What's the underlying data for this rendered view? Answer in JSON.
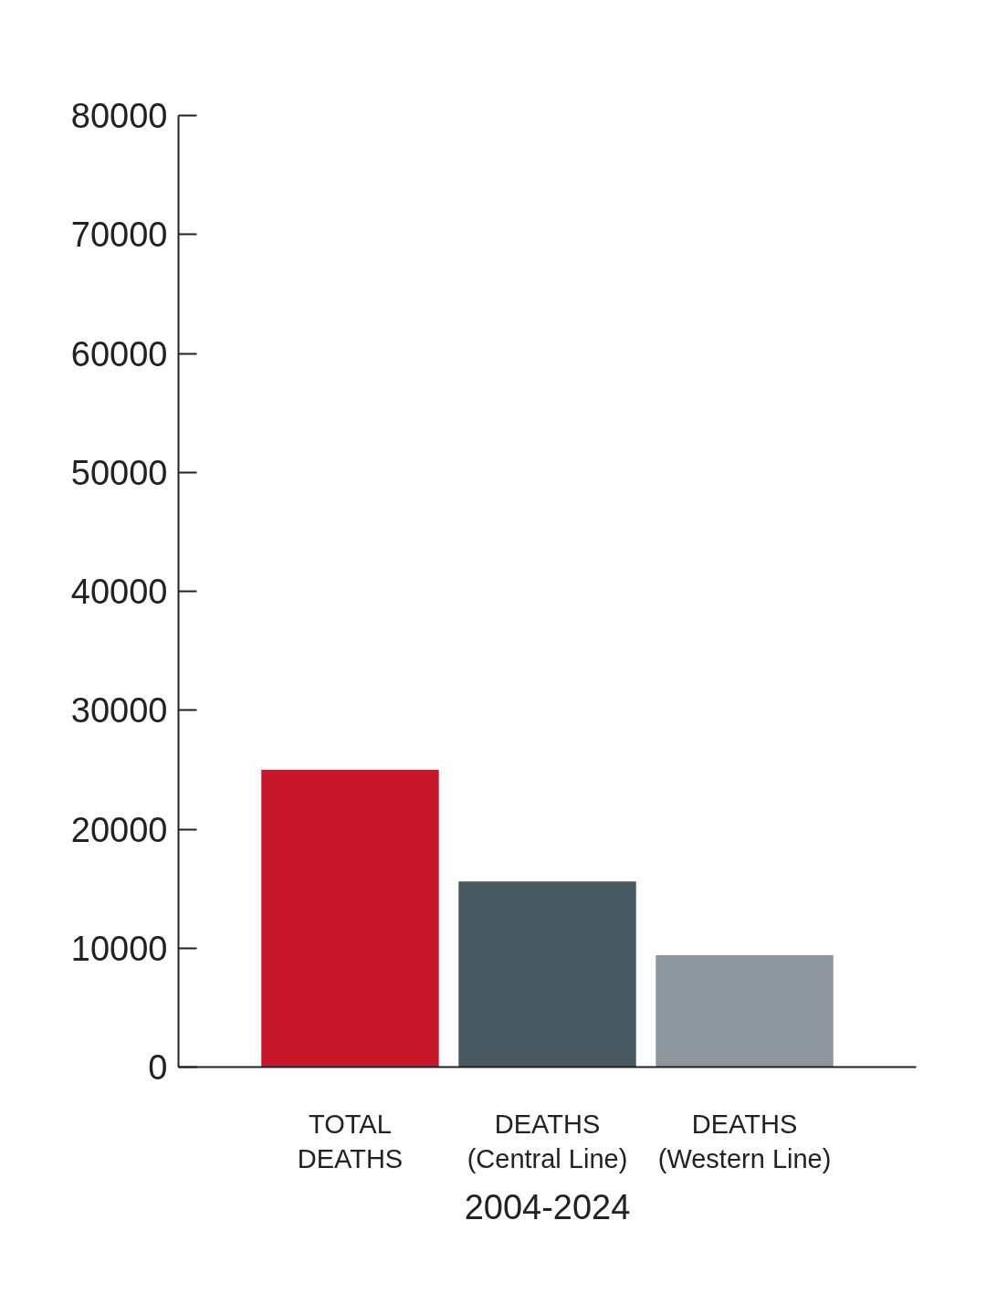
{
  "chart_data": {
    "type": "bar",
    "xlabel": "2004-2024",
    "categories": [
      "TOTAL DEATHS",
      "DEATHS (Central Line)",
      "DEATHS (Western Line)"
    ],
    "values": [
      25000,
      15600,
      9400
    ],
    "colors": [
      "#c8172a",
      "#485962",
      "#8c969c"
    ],
    "ylim": [
      0,
      80000
    ],
    "yticks": [
      0,
      10000,
      20000,
      30000,
      40000,
      50000,
      60000,
      70000,
      80000
    ]
  }
}
